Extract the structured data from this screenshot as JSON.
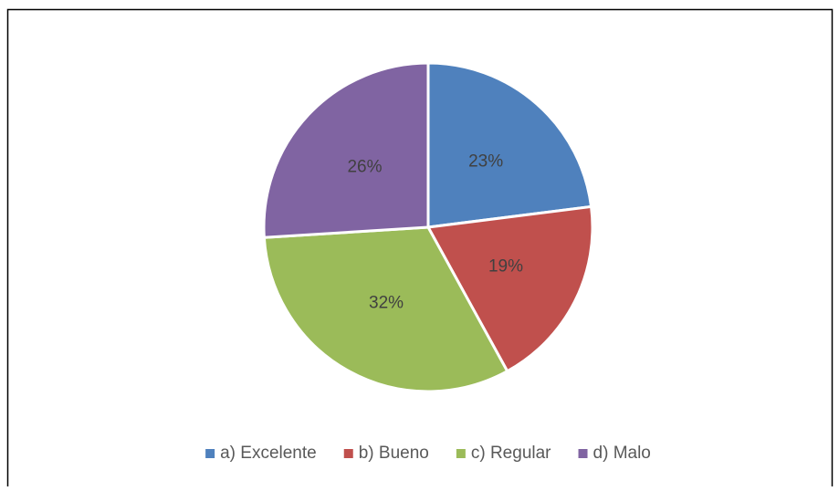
{
  "chart_data": {
    "type": "pie",
    "categories": [
      "a) Excelente",
      "b) Bueno",
      "c) Regular",
      "d) Malo"
    ],
    "values": [
      23,
      19,
      32,
      26
    ],
    "value_labels": [
      "23%",
      "19%",
      "32%",
      "26%"
    ],
    "colors": [
      "#4f81bd",
      "#c0504d",
      "#9bbb59",
      "#8064a2"
    ],
    "legend": "bottom"
  }
}
